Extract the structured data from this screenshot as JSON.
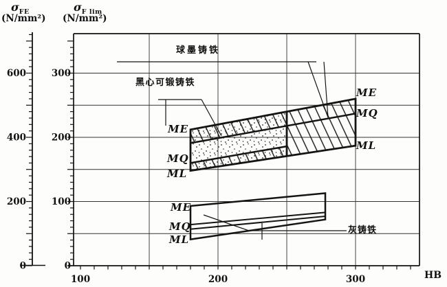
{
  "chart_data": {
    "type": "area",
    "x_axis": {
      "label": "HB",
      "min": 100,
      "max": 345,
      "tick_step": 10,
      "tick_min": 100,
      "tick_max": 340,
      "labeled_ticks": [
        100,
        200,
        300
      ],
      "gridlines": [
        150,
        200,
        250,
        300
      ]
    },
    "y_axis_right": {
      "symbol": "σ",
      "subscript": "F lim",
      "unit": "(N/mm²)",
      "min": 0,
      "max": 360,
      "tick_step": 10,
      "major_tick_step": 50,
      "labeled_ticks": [
        0,
        100,
        200,
        300
      ],
      "gridlines": [
        50,
        100,
        150,
        200,
        250,
        300
      ]
    },
    "y_axis_left": {
      "symbol": "σ",
      "subscript": "FE",
      "unit": "(N/mm²)",
      "min": 0,
      "max": 725,
      "tick_step": 20,
      "major_tick_step": 100,
      "labeled_ticks": [
        0,
        200,
        400,
        600
      ]
    },
    "bands": [
      {
        "id": "ductile-iron",
        "label": "球墨铸铁",
        "texture": "hatch",
        "grades": [
          "ME",
          "MQ",
          "ML"
        ],
        "hb_range": [
          180,
          300
        ],
        "lines": {
          "ME": [
            [
              180,
              212
            ],
            [
              300,
              260
            ]
          ],
          "MQ": [
            [
              180,
              191
            ],
            [
              300,
              237
            ]
          ],
          "ML": [
            [
              180,
              148
            ],
            [
              300,
              187
            ]
          ]
        }
      },
      {
        "id": "malleable-iron",
        "label": "黑心可锻铸铁",
        "texture": "stipple",
        "grades": [
          "ME",
          "MQ",
          "ML"
        ],
        "hb_range": [
          180,
          250
        ],
        "lines": {
          "ME": [
            [
              180,
              212
            ],
            [
              250,
              240
            ]
          ],
          "MQ": [
            [
              180,
              160
            ],
            [
              250,
              186
            ]
          ],
          "ML": [
            [
              180,
              148
            ],
            [
              250,
              171
            ]
          ]
        }
      },
      {
        "id": "grey-iron",
        "label": "灰铸铁",
        "texture": "plain",
        "grades": [
          "ME",
          "MQ",
          "ML"
        ],
        "hb_range": [
          180,
          278
        ],
        "lines": {
          "ME": [
            [
              180,
              93
            ],
            [
              278,
              113
            ]
          ],
          "MQ_upper": [
            [
              180,
              64
            ],
            [
              278,
              83
            ]
          ],
          "MQ_lower": [
            [
              180,
              57
            ],
            [
              278,
              77
            ]
          ],
          "ML": [
            [
              180,
              41
            ],
            [
              278,
              72
            ]
          ]
        }
      }
    ]
  }
}
